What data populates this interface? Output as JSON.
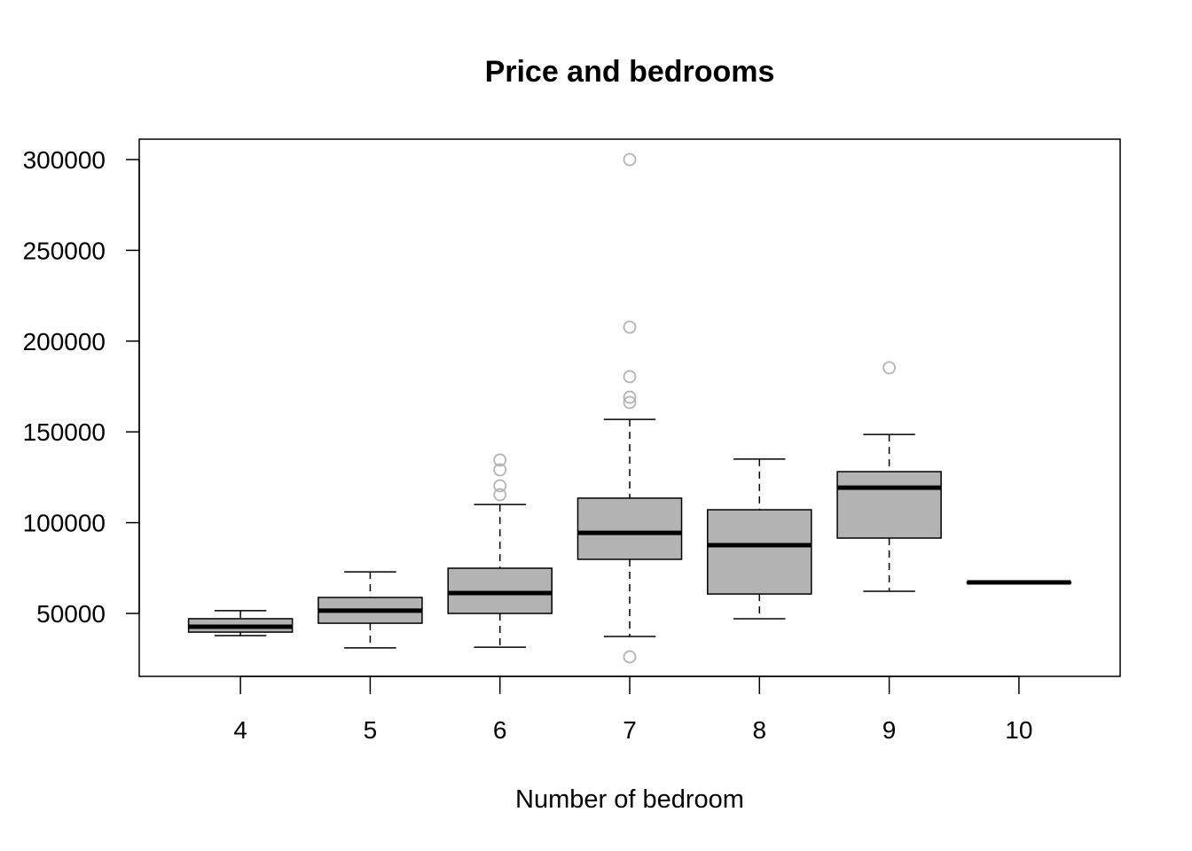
{
  "chart_data": {
    "type": "boxplot",
    "title": "Price and bedrooms",
    "xlabel": "Number of bedroom",
    "ylabel": "",
    "ylim": [
      15000,
      311000
    ],
    "yticks": [
      50000,
      100000,
      150000,
      200000,
      250000,
      300000
    ],
    "ytick_labels": [
      "50000",
      "100000",
      "150000",
      "200000",
      "250000",
      "300000"
    ],
    "categories": [
      "4",
      "5",
      "6",
      "7",
      "8",
      "9",
      "10"
    ],
    "box_color": "#b3b3b3",
    "outlier_color": "#b3b3b3",
    "boxes": [
      {
        "category": "4",
        "whisker_low": 37800,
        "q1": 39700,
        "median": 42700,
        "q3": 47100,
        "whisker_high": 51500,
        "outliers": []
      },
      {
        "category": "5",
        "whisker_low": 31000,
        "q1": 44600,
        "median": 51500,
        "q3": 58800,
        "whisker_high": 72900,
        "outliers": []
      },
      {
        "category": "6",
        "whisker_low": 31400,
        "q1": 50000,
        "median": 61200,
        "q3": 74900,
        "whisker_high": 110000,
        "outliers": [
          115400,
          120300,
          129100,
          134500
        ]
      },
      {
        "category": "7",
        "whisker_low": 37300,
        "q1": 79800,
        "median": 94400,
        "q3": 113500,
        "whisker_high": 156900,
        "outliers": [
          26100,
          166200,
          169100,
          180400,
          207700,
          300000
        ]
      },
      {
        "category": "8",
        "whisker_low": 47100,
        "q1": 60700,
        "median": 87600,
        "q3": 107100,
        "whisker_high": 135000,
        "outliers": []
      },
      {
        "category": "9",
        "whisker_low": 62200,
        "q1": 91500,
        "median": 119300,
        "q3": 128100,
        "whisker_high": 148600,
        "outliers": [
          185300
        ]
      },
      {
        "category": "10",
        "whisker_low": 67100,
        "q1": 67100,
        "median": 67100,
        "q3": 67100,
        "whisker_high": 67100,
        "outliers": []
      }
    ]
  }
}
